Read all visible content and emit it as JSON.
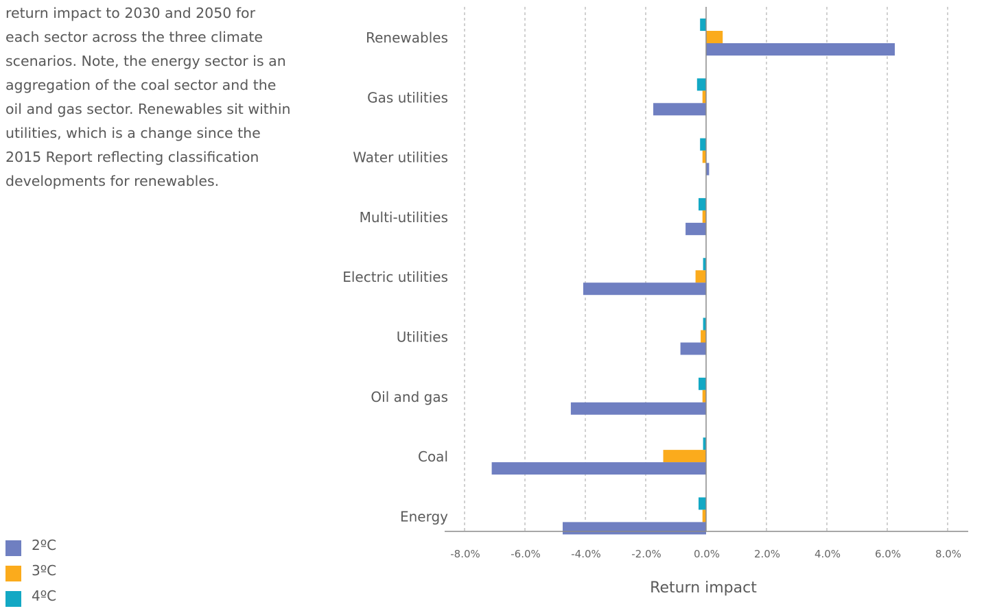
{
  "description": "return impact to 2030 and 2050 for\neach sector across the three climate\nscenarios. Note, the energy sector is an\naggregation of the coal sector and the\noil and gas sector. Renewables sit within\nutilities, which is a change since the\n2015 Report reflecting classification\ndevelopments for renewables.",
  "legend": [
    {
      "label": "2ºC",
      "color": "#6f7fc1"
    },
    {
      "label": "3ºC",
      "color": "#fbab1c"
    },
    {
      "label": "4ºC",
      "color": "#13a8c4"
    }
  ],
  "chart_data": {
    "type": "bar",
    "orientation": "horizontal",
    "title": "",
    "xlabel": "Return impact",
    "ylabel": "",
    "xlim": [
      -8.0,
      8.0
    ],
    "x_ticks": [
      -8.0,
      -6.0,
      -4.0,
      -2.0,
      0.0,
      2.0,
      4.0,
      6.0,
      8.0
    ],
    "tick_format": "percent_1dp",
    "grid": "vertical-dashed",
    "categories": [
      "Renewables",
      "Gas utilities",
      "Water utilities",
      "Multi-utilities",
      "Electric utilities",
      "Utilities",
      "Oil and gas",
      "Coal",
      "Energy"
    ],
    "series": [
      {
        "name": "4ºC",
        "color": "#13a8c4",
        "values": [
          -0.2,
          -0.3,
          -0.2,
          -0.25,
          -0.1,
          -0.1,
          -0.25,
          -0.1,
          -0.25
        ]
      },
      {
        "name": "3ºC",
        "color": "#fbab1c",
        "values": [
          0.55,
          -0.12,
          -0.12,
          -0.12,
          -0.35,
          -0.18,
          -0.12,
          -1.42,
          -0.12
        ]
      },
      {
        "name": "2ºC",
        "color": "#6f7fc1",
        "values": [
          6.25,
          -1.75,
          0.1,
          -0.68,
          -4.07,
          -0.85,
          -4.48,
          -7.1,
          -4.75
        ]
      }
    ]
  }
}
